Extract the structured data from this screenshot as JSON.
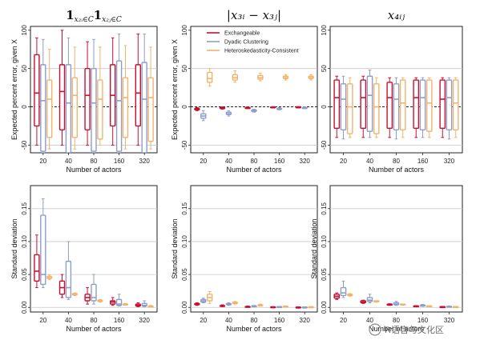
{
  "figure": {
    "watermark": "R语言与文化区",
    "series": [
      {
        "name": "Exchangeable",
        "color": "#c8102e"
      },
      {
        "name": "Dyadic Clustering",
        "color": "#8e9ecb"
      },
      {
        "name": "Heteroskedasticity-Consistent",
        "color": "#f2b36b"
      }
    ]
  },
  "chart_data": [
    {
      "type": "box",
      "panel": "top-left",
      "title": "1_{x2i∈C}1_{x2j∈C}",
      "title_parts": {
        "base": "1",
        "sub": "x₂ᵢ∈C",
        "sep": "1",
        "sub2": "x₂ⱼ∈C"
      },
      "xlabel": "Number of actors",
      "ylabel": "Expected percent error, given X",
      "categories": [
        "20",
        "40",
        "80",
        "160",
        "320"
      ],
      "ylim": [
        -60,
        105
      ],
      "yticks": [
        "-50",
        "0",
        "50",
        "100"
      ],
      "ytick_values": [
        -50,
        0,
        50,
        100
      ],
      "hlines": [
        50,
        -50
      ],
      "zero_line": true,
      "series": [
        {
          "name": "Exchangeable",
          "boxes": [
            [
              -50,
              -25,
              18,
              68,
              90
            ],
            [
              -50,
              -30,
              20,
              55,
              100
            ],
            [
              -50,
              -30,
              15,
              50,
              85
            ],
            [
              -50,
              -25,
              15,
              55,
              90
            ],
            [
              -50,
              -25,
              18,
              55,
              95
            ]
          ]
        },
        {
          "name": "Dyadic Clustering",
          "boxes": [
            [
              -60,
              -58,
              8,
              55,
              88
            ],
            [
              -62,
              -60,
              5,
              55,
              90
            ],
            [
              -60,
              -58,
              5,
              50,
              88
            ],
            [
              -60,
              -58,
              8,
              60,
              95
            ],
            [
              -62,
              -60,
              10,
              58,
              95
            ]
          ]
        },
        {
          "name": "Heteroskedasticity-Consistent",
          "boxes": [
            [
              -55,
              -40,
              10,
              35,
              75
            ],
            [
              -55,
              -40,
              15,
              38,
              78
            ],
            [
              -50,
              -42,
              10,
              35,
              78
            ],
            [
              -55,
              -40,
              12,
              38,
              80
            ],
            [
              -55,
              -45,
              12,
              38,
              78
            ]
          ]
        }
      ]
    },
    {
      "type": "box",
      "panel": "top-middle",
      "title": "|x3i − x3j|",
      "title_parts": {
        "text": "|x₃ᵢ − x₃ⱼ|"
      },
      "xlabel": "Number of actors",
      "ylabel": "Expected percent error, given X",
      "categories": [
        "20",
        "40",
        "80",
        "160",
        "320"
      ],
      "ylim": [
        -60,
        105
      ],
      "yticks": [
        "-50",
        "0",
        "50",
        "100"
      ],
      "ytick_values": [
        -50,
        0,
        50,
        100
      ],
      "hlines": [
        50,
        -50
      ],
      "zero_line": true,
      "series": [
        {
          "name": "Exchangeable",
          "boxes": [
            [
              -5,
              -4,
              -3,
              -2,
              -1
            ],
            [
              -3,
              -2,
              -2,
              -1,
              0
            ],
            [
              -2,
              -2,
              -1,
              -1,
              0
            ],
            [
              -1,
              -1,
              -1,
              0,
              0
            ],
            [
              -1,
              -1,
              0,
              0,
              0
            ]
          ]
        },
        {
          "name": "Dyadic Clustering",
          "boxes": [
            [
              -18,
              -15,
              -12,
              -9,
              -5
            ],
            [
              -12,
              -10,
              -9,
              -7,
              -5
            ],
            [
              -7,
              -6,
              -5,
              -4,
              -3
            ],
            [
              -4,
              -3,
              -3,
              -2,
              -1
            ],
            [
              -2,
              -2,
              -1,
              -1,
              0
            ]
          ]
        },
        {
          "name": "Heteroskedasticity-Consistent",
          "boxes": [
            [
              27,
              32,
              37,
              45,
              50
            ],
            [
              32,
              35,
              38,
              42,
              47
            ],
            [
              34,
              36,
              38,
              41,
              44
            ],
            [
              35,
              37,
              38,
              40,
              42
            ],
            [
              35,
              37,
              38,
              40,
              42
            ]
          ]
        }
      ],
      "legend": {
        "position": "top-right",
        "entries": [
          "Exchangeable",
          "Dyadic Clustering",
          "Heteroskedasticity-Consistent"
        ]
      }
    },
    {
      "type": "box",
      "panel": "top-right",
      "title": "x4ij",
      "title_parts": {
        "text": "x₄ᵢⱼ"
      },
      "xlabel": "Number of actors",
      "ylabel": "",
      "categories": [
        "20",
        "40",
        "80",
        "160",
        "320"
      ],
      "ylim": [
        -60,
        105
      ],
      "yticks": [
        "-50",
        "0",
        "50",
        "100"
      ],
      "ytick_values": [
        -50,
        0,
        50,
        100
      ],
      "hlines": [
        50,
        -50
      ],
      "zero_line": true,
      "series": [
        {
          "name": "Exchangeable",
          "boxes": [
            [
              -40,
              -28,
              12,
              35,
              40
            ],
            [
              -40,
              -28,
              12,
              35,
              40
            ],
            [
              -40,
              -28,
              12,
              32,
              38
            ],
            [
              -40,
              -28,
              12,
              35,
              38
            ],
            [
              -40,
              -28,
              10,
              35,
              38
            ]
          ]
        },
        {
          "name": "Dyadic Clustering",
          "boxes": [
            [
              -42,
              -30,
              10,
              30,
              40
            ],
            [
              -40,
              -32,
              15,
              40,
              48
            ],
            [
              -42,
              -30,
              10,
              30,
              38
            ],
            [
              -40,
              -30,
              12,
              35,
              38
            ],
            [
              -42,
              -30,
              12,
              35,
              38
            ]
          ]
        },
        {
          "name": "Heteroskedasticity-Consistent",
          "boxes": [
            [
              -40,
              -35,
              0,
              30,
              38
            ],
            [
              -40,
              -35,
              0,
              30,
              38
            ],
            [
              -40,
              -30,
              5,
              35,
              38
            ],
            [
              -40,
              -32,
              5,
              35,
              38
            ],
            [
              -40,
              -30,
              5,
              35,
              38
            ]
          ]
        }
      ]
    },
    {
      "type": "box",
      "panel": "bottom-left",
      "title": "",
      "xlabel": "Number of actors",
      "ylabel": "Standard deviation",
      "categories": [
        "20",
        "40",
        "80",
        "160",
        "320"
      ],
      "ylim": [
        -0.007,
        0.185
      ],
      "yticks": [
        "0.00",
        "0.05",
        "0.10",
        "0.15"
      ],
      "ytick_values": [
        0,
        0.05,
        0.1,
        0.15
      ],
      "hlines": [
        0,
        0.05,
        0.1,
        0.15
      ],
      "zero_line": false,
      "series": [
        {
          "name": "Exchangeable",
          "boxes": [
            [
              0.03,
              0.04,
              0.055,
              0.08,
              0.11
            ],
            [
              0.015,
              0.02,
              0.03,
              0.04,
              0.05
            ],
            [
              0.005,
              0.01,
              0.015,
              0.02,
              0.03
            ],
            [
              0.003,
              0.005,
              0.008,
              0.01,
              0.015
            ],
            [
              0.001,
              0.002,
              0.003,
              0.005,
              0.007
            ]
          ]
        },
        {
          "name": "Dyadic Clustering",
          "boxes": [
            [
              0.03,
              0.035,
              0.05,
              0.14,
              0.165
            ],
            [
              0.012,
              0.015,
              0.03,
              0.07,
              0.1
            ],
            [
              0.005,
              0.01,
              0.015,
              0.035,
              0.05
            ],
            [
              0.002,
              0.003,
              0.005,
              0.012,
              0.02
            ],
            [
              0.001,
              0.002,
              0.003,
              0.006,
              0.01
            ]
          ]
        },
        {
          "name": "Heteroskedasticity-Consistent",
          "boxes": [
            [
              0.042,
              0.044,
              0.045,
              0.047,
              0.049
            ],
            [
              0.018,
              0.019,
              0.02,
              0.021,
              0.022
            ],
            [
              0.008,
              0.009,
              0.01,
              0.011,
              0.012
            ],
            [
              0.004,
              0.004,
              0.005,
              0.005,
              0.006
            ],
            [
              0.001,
              0.002,
              0.002,
              0.002,
              0.003
            ]
          ]
        }
      ]
    },
    {
      "type": "box",
      "panel": "bottom-middle",
      "title": "",
      "xlabel": "Number of actors",
      "ylabel": "Standard deviation",
      "categories": [
        "20",
        "40",
        "80",
        "160",
        "320"
      ],
      "ylim": [
        -0.007,
        0.185
      ],
      "yticks": [
        "0.00",
        "0.05",
        "0.10",
        "0.15"
      ],
      "ytick_values": [
        0,
        0.05,
        0.1,
        0.15
      ],
      "hlines": [
        0,
        0.05,
        0.1,
        0.15
      ],
      "zero_line": false,
      "series": [
        {
          "name": "Exchangeable",
          "boxes": [
            [
              0.003,
              0.004,
              0.005,
              0.006,
              0.007
            ],
            [
              0.001,
              0.002,
              0.002,
              0.003,
              0.004
            ],
            [
              0.0005,
              0.001,
              0.001,
              0.0015,
              0.002
            ],
            [
              0.0002,
              0.0005,
              0.0005,
              0.001,
              0.001
            ],
            [
              0,
              0.0002,
              0.0003,
              0.0005,
              0.0007
            ]
          ]
        },
        {
          "name": "Dyadic Clustering",
          "boxes": [
            [
              0.007,
              0.008,
              0.01,
              0.012,
              0.014
            ],
            [
              0.003,
              0.004,
              0.005,
              0.006,
              0.007
            ],
            [
              0.001,
              0.0015,
              0.002,
              0.0025,
              0.003
            ],
            [
              0.0005,
              0.0008,
              0.001,
              0.0012,
              0.0015
            ],
            [
              0.0002,
              0.0004,
              0.0005,
              0.0006,
              0.0008
            ]
          ]
        },
        {
          "name": "Heteroskedasticity-Consistent",
          "boxes": [
            [
              0.006,
              0.01,
              0.015,
              0.02,
              0.024
            ],
            [
              0.005,
              0.006,
              0.007,
              0.008,
              0.009
            ],
            [
              0.002,
              0.003,
              0.003,
              0.004,
              0.005
            ],
            [
              0.001,
              0.0012,
              0.0015,
              0.0018,
              0.002
            ],
            [
              0.0005,
              0.0007,
              0.0008,
              0.001,
              0.0012
            ]
          ]
        }
      ]
    },
    {
      "type": "box",
      "panel": "bottom-right",
      "title": "",
      "xlabel": "Number of actors",
      "ylabel": "Standard deviation",
      "categories": [
        "20",
        "40",
        "80",
        "160",
        "320"
      ],
      "ylim": [
        -0.007,
        0.185
      ],
      "yticks": [
        "0.00",
        "0.05",
        "0.10",
        "0.15"
      ],
      "ytick_values": [
        0,
        0.05,
        0.1,
        0.15
      ],
      "hlines": [
        0,
        0.05,
        0.1,
        0.15
      ],
      "zero_line": false,
      "series": [
        {
          "name": "Exchangeable",
          "boxes": [
            [
              0.012,
              0.014,
              0.017,
              0.02,
              0.022
            ],
            [
              0.006,
              0.007,
              0.008,
              0.01,
              0.011
            ],
            [
              0.003,
              0.0035,
              0.004,
              0.005,
              0.0055
            ],
            [
              0.0015,
              0.0018,
              0.002,
              0.0024,
              0.0027
            ],
            [
              0.0008,
              0.0009,
              0.001,
              0.0012,
              0.0014
            ]
          ]
        },
        {
          "name": "Dyadic Clustering",
          "boxes": [
            [
              0.015,
              0.018,
              0.022,
              0.03,
              0.04
            ],
            [
              0.007,
              0.009,
              0.011,
              0.015,
              0.02
            ],
            [
              0.003,
              0.004,
              0.005,
              0.007,
              0.009
            ],
            [
              0.0015,
              0.002,
              0.0025,
              0.0035,
              0.0045
            ],
            [
              0.0008,
              0.001,
              0.0012,
              0.0017,
              0.0022
            ]
          ]
        },
        {
          "name": "Heteroskedasticity-Consistent",
          "boxes": [
            [
              0.017,
              0.018,
              0.019,
              0.02,
              0.021
            ],
            [
              0.008,
              0.009,
              0.009,
              0.01,
              0.01
            ],
            [
              0.004,
              0.0045,
              0.0045,
              0.005,
              0.005
            ],
            [
              0.002,
              0.0022,
              0.0023,
              0.0024,
              0.0025
            ],
            [
              0.001,
              0.0011,
              0.0012,
              0.0012,
              0.0013
            ]
          ]
        }
      ]
    }
  ]
}
